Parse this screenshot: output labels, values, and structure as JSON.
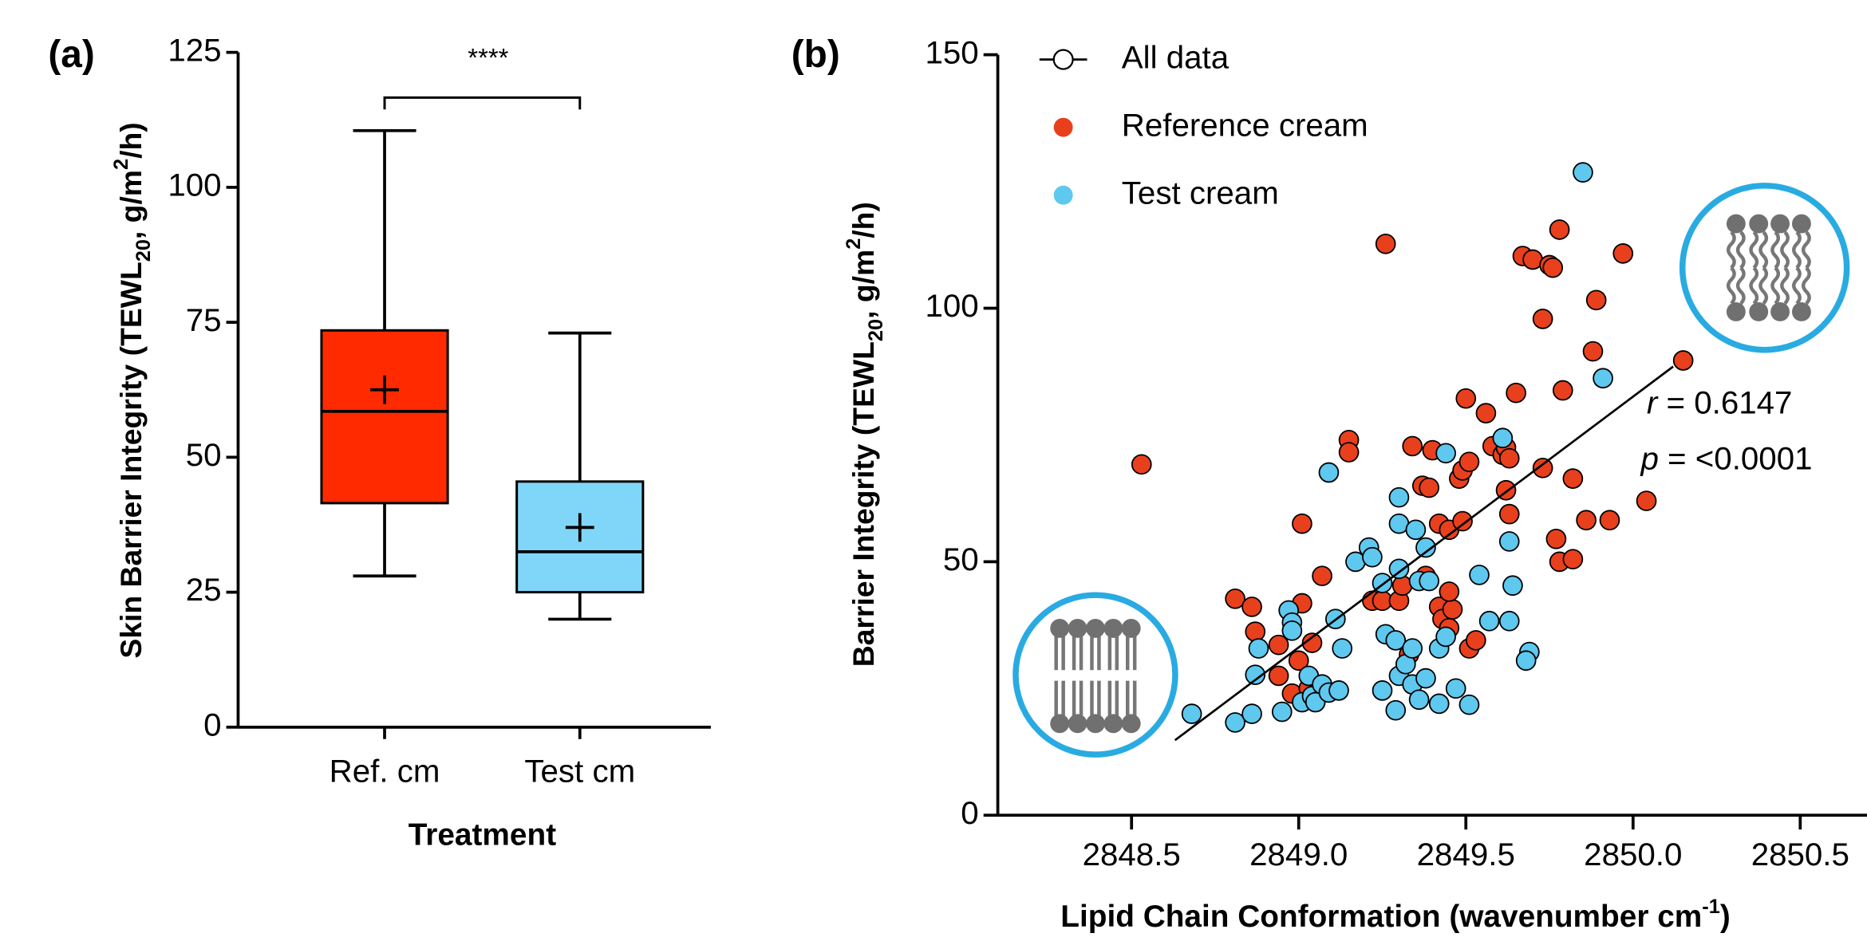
{
  "chart_data": [
    {
      "type": "box",
      "panel_label": "(a)",
      "ylabel": [
        "Skin Barrier Integrity (TEWL",
        "20",
        ", g/m",
        "2",
        "/h)"
      ],
      "xlabel": "Treatment",
      "categories": [
        "Ref. cm",
        "Test cm"
      ],
      "boxes": [
        {
          "min": 28,
          "q1": 41.5,
          "median": 58.5,
          "q3": 73.5,
          "max": 110.5,
          "mean": 62.5,
          "color": "#ff2a00"
        },
        {
          "min": 20,
          "q1": 25,
          "median": 32.5,
          "q3": 45.5,
          "max": 73,
          "mean": 37,
          "color": "#80d6f8"
        }
      ],
      "significance": "****",
      "ylim": [
        0,
        125
      ],
      "yticks": [
        0,
        25,
        50,
        75,
        100,
        125
      ],
      "grid": false
    },
    {
      "type": "scatter",
      "panel_label": "(b)",
      "ylabel": [
        "Barrier Integrity (TEWL",
        "20",
        ", g/m",
        "2",
        "/h)"
      ],
      "xlabel": [
        "Lipid Chain Conformation (wavenumber cm",
        "-1",
        ")"
      ],
      "xlim": [
        2848.1,
        2850.6
      ],
      "xticks": [
        2848.5,
        {
          "value": 2849,
          "label": "2849.0"
        },
        2849.5,
        {
          "value": 2850,
          "label": "2850.0"
        },
        2850.5
      ],
      "ylim": [
        0,
        150
      ],
      "yticks": [
        0,
        50,
        100,
        150
      ],
      "grid": false,
      "legend": "top-left",
      "fit": {
        "name": "All data",
        "color": "#000000",
        "x": [
          2848.63,
          2850.12
        ],
        "values": [
          14.8,
          88.5
        ]
      },
      "series": [
        {
          "name": "Reference cream",
          "color": "#e8401c",
          "x": [
            2848.53,
            2848.81,
            2848.86,
            2848.87,
            2848.94,
            2848.94,
            2849.01,
            2849.01,
            2848.98,
            2849.03,
            2849.04,
            2849.0,
            2849.07,
            2849.15,
            2849.15,
            2849.26,
            2849.22,
            2849.25,
            2849.3,
            2849.31,
            2849.33,
            2849.34,
            2849.37,
            2849.39,
            2849.4,
            2849.38,
            2849.42,
            2849.45,
            2849.42,
            2849.43,
            2849.45,
            2849.46,
            2849.45,
            2849.48,
            2849.49,
            2849.51,
            2849.5,
            2849.51,
            2849.53,
            2849.49,
            2849.56,
            2849.58,
            2849.61,
            2849.62,
            2849.63,
            2849.62,
            2849.63,
            2849.65,
            2849.67,
            2849.7,
            2849.73,
            2849.75,
            2849.76,
            2849.78,
            2849.77,
            2849.78,
            2849.82,
            2849.79,
            2849.73,
            2849.82,
            2849.86,
            2849.88,
            2849.89,
            2849.93,
            2849.97,
            2850.04,
            2850.15
          ],
          "values": [
            69.2,
            42.7,
            41.1,
            36.2,
            33.6,
            27.5,
            57.5,
            41.8,
            24,
            25,
            34,
            30.5,
            47.2,
            74,
            71.6,
            112.7,
            42.3,
            42.3,
            42.3,
            45.3,
            31.7,
            72.8,
            65,
            64.6,
            72,
            47.2,
            57.5,
            56.3,
            41.1,
            38.7,
            36.9,
            40.6,
            44.1,
            66.4,
            68,
            69.7,
            82.2,
            32.9,
            34.5,
            58,
            79.3,
            72.8,
            71.1,
            72.5,
            70.4,
            64.1,
            59.4,
            83.3,
            110.3,
            109.6,
            97.9,
            108.5,
            108,
            115.5,
            54.5,
            50,
            50.5,
            83.8,
            68.5,
            66.4,
            58.2,
            91.5,
            101.6,
            58.2,
            110.8,
            62,
            89.7
          ]
        },
        {
          "name": "Test cream",
          "color": "#5ec8ef",
          "x": [
            2848.68,
            2848.81,
            2848.86,
            2848.87,
            2848.88,
            2848.97,
            2848.98,
            2848.98,
            2848.95,
            2849.01,
            2849.04,
            2849.05,
            2849.03,
            2849.07,
            2849.09,
            2849.12,
            2849.13,
            2849.11,
            2849.09,
            2849.17,
            2849.21,
            2849.22,
            2849.25,
            2849.26,
            2849.29,
            2849.3,
            2849.25,
            2849.29,
            2849.32,
            2849.34,
            2849.34,
            2849.36,
            2849.38,
            2849.36,
            2849.38,
            2849.3,
            2849.3,
            2849.35,
            2849.3,
            2849.39,
            2849.44,
            2849.42,
            2849.47,
            2849.42,
            2849.44,
            2849.54,
            2849.57,
            2849.51,
            2849.61,
            2849.63,
            2849.64,
            2849.63,
            2849.69,
            2849.68,
            2849.85,
            2849.91
          ],
          "values": [
            20,
            18.3,
            20,
            27.7,
            32.9,
            40.4,
            38,
            36.4,
            20.4,
            22.3,
            23.5,
            22.3,
            27.5,
            25.8,
            24.2,
            24.6,
            32.9,
            38.7,
            67.6,
            50,
            52.8,
            50.9,
            45.8,
            35.7,
            34.5,
            27.5,
            24.6,
            20.7,
            29.8,
            32.9,
            25.8,
            22.8,
            27,
            46.2,
            52.8,
            57.5,
            62.7,
            56.3,
            48.6,
            46.2,
            71.4,
            22,
            25,
            32.9,
            35.2,
            47.4,
            38.3,
            21.8,
            74.4,
            54,
            45.3,
            38.3,
            32.2,
            30.5,
            126.8,
            86.2
          ]
        }
      ],
      "stats": [
        {
          "symbol": "r",
          "eq": " = ",
          "text": "0.6147"
        },
        {
          "symbol": "p",
          "eq": " = ",
          "text": "<0.0001"
        }
      ]
    }
  ]
}
